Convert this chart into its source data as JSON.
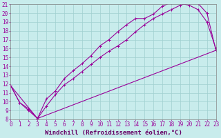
{
  "xlabel": "Windchill (Refroidissement éolien,°C)",
  "bg_color": "#c8ecec",
  "line_color": "#990099",
  "xmin": 0,
  "xmax": 23,
  "ymin": 8,
  "ymax": 21,
  "line1_x": [
    0,
    1,
    2,
    3,
    4,
    5,
    6,
    7,
    8,
    9,
    10,
    11,
    12,
    13,
    14,
    15,
    16,
    17,
    18,
    19,
    20,
    21,
    22,
    23
  ],
  "line1_y": [
    11.8,
    9.9,
    9.0,
    8.1,
    9.5,
    10.8,
    11.9,
    12.6,
    13.4,
    14.2,
    15.0,
    15.7,
    16.3,
    17.0,
    17.9,
    18.7,
    19.4,
    19.9,
    20.4,
    20.9,
    21.2,
    21.1,
    20.0,
    15.8
  ],
  "line2_x": [
    0,
    1,
    2,
    3,
    4,
    5,
    6,
    7,
    8,
    9,
    10,
    11,
    12,
    13,
    14,
    15,
    16,
    17,
    18,
    19,
    20,
    21,
    22,
    23
  ],
  "line2_y": [
    11.8,
    9.9,
    9.2,
    8.1,
    10.3,
    11.2,
    12.6,
    13.5,
    14.3,
    15.2,
    16.3,
    17.0,
    17.9,
    18.7,
    19.4,
    19.4,
    19.9,
    20.8,
    21.2,
    21.1,
    20.9,
    20.4,
    19.0,
    16.0
  ],
  "line3_x": [
    0,
    3,
    23
  ],
  "line3_y": [
    11.8,
    8.1,
    15.8
  ],
  "grid_color": "#a0d0d0",
  "tick_fontsize": 5.5,
  "xlabel_fontsize": 6.5
}
